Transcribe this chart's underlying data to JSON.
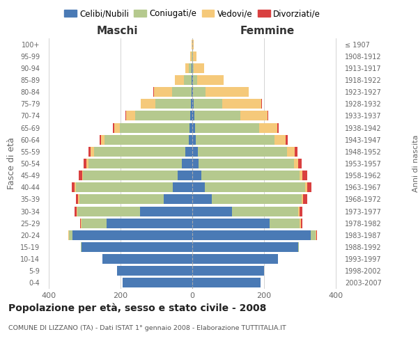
{
  "age_groups": [
    "0-4",
    "5-9",
    "10-14",
    "15-19",
    "20-24",
    "25-29",
    "30-34",
    "35-39",
    "40-44",
    "45-49",
    "50-54",
    "55-59",
    "60-64",
    "65-69",
    "70-74",
    "75-79",
    "80-84",
    "85-89",
    "90-94",
    "95-99",
    "100+"
  ],
  "birth_years": [
    "2003-2007",
    "1998-2002",
    "1993-1997",
    "1988-1992",
    "1983-1987",
    "1978-1982",
    "1973-1977",
    "1968-1972",
    "1963-1967",
    "1958-1962",
    "1953-1957",
    "1948-1952",
    "1943-1947",
    "1938-1942",
    "1933-1937",
    "1928-1932",
    "1923-1927",
    "1918-1922",
    "1913-1917",
    "1908-1912",
    "≤ 1907"
  ],
  "males": {
    "celibi": [
      195,
      210,
      250,
      310,
      335,
      240,
      145,
      80,
      55,
      40,
      30,
      20,
      10,
      8,
      5,
      3,
      2,
      2,
      1,
      0,
      0
    ],
    "coniugati": [
      0,
      0,
      0,
      2,
      10,
      70,
      175,
      235,
      270,
      265,
      260,
      255,
      235,
      195,
      155,
      100,
      55,
      22,
      8,
      2,
      0
    ],
    "vedovi": [
      0,
      0,
      0,
      0,
      1,
      2,
      3,
      3,
      3,
      3,
      5,
      8,
      10,
      15,
      25,
      40,
      50,
      25,
      10,
      3,
      1
    ],
    "divorziati": [
      0,
      0,
      0,
      0,
      1,
      2,
      5,
      7,
      8,
      8,
      8,
      6,
      4,
      3,
      2,
      1,
      1,
      0,
      0,
      0,
      0
    ]
  },
  "females": {
    "nubili": [
      190,
      200,
      240,
      295,
      330,
      215,
      110,
      55,
      35,
      25,
      18,
      15,
      10,
      7,
      5,
      3,
      2,
      1,
      0,
      0,
      0
    ],
    "coniugate": [
      0,
      0,
      0,
      2,
      15,
      85,
      185,
      250,
      280,
      275,
      265,
      250,
      220,
      180,
      130,
      80,
      35,
      12,
      4,
      1,
      0
    ],
    "vedove": [
      0,
      0,
      0,
      0,
      1,
      3,
      5,
      5,
      6,
      8,
      12,
      20,
      30,
      50,
      75,
      110,
      120,
      75,
      30,
      10,
      3
    ],
    "divorziate": [
      0,
      0,
      0,
      0,
      2,
      4,
      8,
      10,
      12,
      12,
      10,
      8,
      6,
      4,
      2,
      1,
      1,
      0,
      0,
      0,
      0
    ]
  },
  "colors": {
    "celibi": "#4a7ab5",
    "coniugati": "#b5c98e",
    "vedovi": "#f5c97a",
    "divorziati": "#d94040"
  },
  "xlim": 420,
  "title": "Popolazione per età, sesso e stato civile - 2008",
  "subtitle": "COMUNE DI LIZZANO (TA) - Dati ISTAT 1° gennaio 2008 - Elaborazione TUTTITALIA.IT",
  "ylabel_left": "Fasce di età",
  "ylabel_right": "Anni di nascita",
  "xlabel_left": "Maschi",
  "xlabel_right": "Femmine",
  "legend_labels": [
    "Celibi/Nubili",
    "Coniugati/e",
    "Vedovi/e",
    "Divorziati/e"
  ],
  "bg_color": "#ffffff",
  "grid_color": "#cccccc"
}
